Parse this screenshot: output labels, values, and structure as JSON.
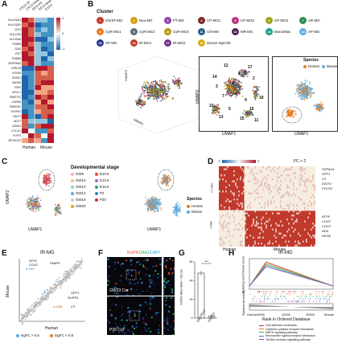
{
  "panel_labels": {
    "A": "A",
    "B": "B",
    "C": "C",
    "D": "D",
    "E": "E",
    "F": "F",
    "G": "G",
    "H": "H"
  },
  "panelA": {
    "columns": [
      "CS12-16",
      "CS13-Head",
      "E9.5-SS",
      "E9.5-Head",
      "E10.5"
    ],
    "genes": [
      "HLA-DQA1",
      "HLA-DQB1",
      "CD74",
      "HLA-DRA",
      "HLA-DMA",
      "PSMB9",
      "CD81",
      "IFI27",
      "TIMM50",
      "SERPINA3",
      "LRRC38",
      "HOXA9",
      "DDHD1",
      "SNHG6",
      "STM3",
      "APOC1",
      "FAM173C",
      "CAVINA",
      "FAM126C",
      "PLEKH1",
      "CALP1",
      "ADCY",
      "DDAH1",
      "CCL3L1",
      "PLPP3",
      "NEUROG2"
    ],
    "group_labels": [
      "Human",
      "Mouse"
    ],
    "colorbar_ticks": [
      "1",
      "0",
      "-1"
    ],
    "colors": {
      "high": "#b2182b",
      "low": "#2166ac",
      "mid": "#f7f7f7"
    }
  },
  "panelB": {
    "heading": "Cluster",
    "clusters": [
      {
        "n": "1",
        "label": "OS/ST-MG",
        "color": "#c0392b"
      },
      {
        "n": "2",
        "label": "Neu-MG",
        "color": "#d4a017"
      },
      {
        "n": "3",
        "label": "PT-MG",
        "color": "#8e44ad"
      },
      {
        "n": "4",
        "label": "CP-MG1",
        "color": "#7d2a2a"
      },
      {
        "n": "5",
        "label": "CP-MG2",
        "color": "#b83280"
      },
      {
        "n": "6",
        "label": "CP-MG3",
        "color": "#9aa61b"
      },
      {
        "n": "7",
        "label": "AR-MG",
        "color": "#2e8b57"
      },
      {
        "n": "8",
        "label": "CyR-MG1",
        "color": "#e67e22"
      },
      {
        "n": "9",
        "label": "CyR-MG2",
        "color": "#5d6d7e"
      },
      {
        "n": "10",
        "label": "CyR-MG3",
        "color": "#b7950b"
      },
      {
        "n": "11",
        "label": "CM-MG",
        "color": "#1f618d"
      },
      {
        "n": "12",
        "label": "MR-MG",
        "color": "#4a235a"
      },
      {
        "n": "13",
        "label": "Mono/Mac",
        "color": "#16a085"
      },
      {
        "n": "14",
        "label": "AP-MG",
        "color": "#5dade2"
      },
      {
        "n": "15",
        "label": "SP-MG",
        "color": "#283593"
      },
      {
        "n": "16",
        "label": "IR-MG1",
        "color": "#c0392b"
      },
      {
        "n": "17",
        "label": "IR-MG2",
        "color": "#6c3483"
      },
      {
        "n": "18",
        "label": "Mouse-Specific",
        "color": "#d4ac0d"
      }
    ],
    "axis_umap1": "UMAP1",
    "axis_umap2": "UMAP2",
    "axis_umap3": "UMAP3",
    "species_heading": "Species",
    "species": [
      {
        "label": "Human",
        "color": "#e67e22"
      },
      {
        "label": "Mouse",
        "color": "#5dade2"
      }
    ],
    "cluster_numbers": [
      "12",
      "17",
      "14",
      "8",
      "2",
      "3",
      "6",
      "7",
      "18",
      "4",
      "9",
      "10",
      "5",
      "16",
      "13",
      "15",
      "11",
      "1"
    ]
  },
  "panelC": {
    "stage_heading": "Developmental stage",
    "stages": [
      {
        "label": "GW6",
        "color": "#f5b7b1"
      },
      {
        "label": "E10.5",
        "color": "#e74c3c"
      },
      {
        "label": "GW10",
        "color": "#f8c471"
      },
      {
        "label": "E13.5",
        "color": "#a569bd"
      },
      {
        "label": "GW12",
        "color": "#82e0aa"
      },
      {
        "label": "E16.5",
        "color": "#27ae60"
      },
      {
        "label": "GW14",
        "color": "#5dade2"
      },
      {
        "label": "P2",
        "color": "#2e86c1"
      },
      {
        "label": "GW16",
        "color": "#d7bde2"
      },
      {
        "label": "P20",
        "color": "#c0392b"
      },
      {
        "label": "GW23",
        "color": "#f39c12"
      }
    ],
    "species_heading": "Species",
    "species": [
      {
        "label": "Human",
        "color": "#e67e22"
      },
      {
        "label": "Mouse",
        "color": "#5dade2"
      }
    ],
    "axis_umap1": "UMAP1",
    "axis_umap2": "UMAP2"
  },
  "panelD": {
    "scale_min": "-3",
    "scale_max": "3",
    "fc_label": "FC > 2",
    "top_n": "n=130",
    "bottom_n": "n=98",
    "genes_top": [
      "HSPA1A",
      "SPP1",
      "C3",
      "DDIT4",
      "POLR2"
    ],
    "genes_bottom": [
      "ATP6",
      "COX2",
      "COX3",
      "ND4",
      "HEXB"
    ],
    "x_labels": [
      "Human",
      "Mouse"
    ]
  },
  "panelE": {
    "title": "IR-MG",
    "n_top": "n=597",
    "n_bottom": "n=538",
    "genes_top": [
      "ATP6",
      "COX2",
      "FABP5"
    ],
    "genes_bottom": [
      "SPP1",
      "NUPR1",
      "C3"
    ],
    "xlabel": "Human",
    "ylabel": "Mouse",
    "legend": [
      {
        "label": "logFC > 0.5",
        "color": "#5dade2"
      },
      {
        "label": "logFC <-0.5",
        "color": "#e67e22"
      }
    ],
    "ticks": [
      "0",
      "2",
      "4"
    ]
  },
  "panelF": {
    "channel_nupr1": "NUPR1",
    "channel_iba1": "IBA1",
    "channel_dapi": "/DAPI",
    "top_label": "GW23 Cor",
    "bottom_label": "P20 Cor"
  },
  "panelG": {
    "ylabel": "NUPR1+IBA1+/IBA1+ cells (%)",
    "categories": [
      "GW23Cor",
      "P20Cor"
    ],
    "yticks": [
      "0",
      "20",
      "40",
      "60"
    ],
    "significance": "***",
    "chart_data": {
      "type": "bar",
      "categories": [
        "GW23Cor",
        "P20Cor"
      ],
      "values": [
        48,
        2
      ],
      "ylim": [
        0,
        60
      ],
      "ylabel": "NUPR1+IBA1+/IBA1+ cells (%)"
    }
  },
  "panelH": {
    "title": "IR-MG",
    "ylabel_top": "Running enrichment score",
    "ylabel_bottom": "Ranked list metric",
    "xlabel": "Rank in Ordered Database",
    "xticks": [
      "0",
      "5000",
      "10000",
      "15000"
    ],
    "x_end_labels": [
      "Human",
      "Mouse"
    ],
    "pathways": [
      {
        "label": "Cell adhesion molecules",
        "color": "#c0392b"
      },
      {
        "label": "Cytokine-cytokine receptor interaction",
        "color": "#e67e22"
      },
      {
        "label": "MAPK signaling pathway",
        "color": "#27ae60"
      },
      {
        "label": "Neuroactive ligand-receptor interaction",
        "color": "#2e86c1"
      },
      {
        "label": "Toll-like receptor signaling pathway",
        "color": "#8e44ad"
      }
    ]
  }
}
